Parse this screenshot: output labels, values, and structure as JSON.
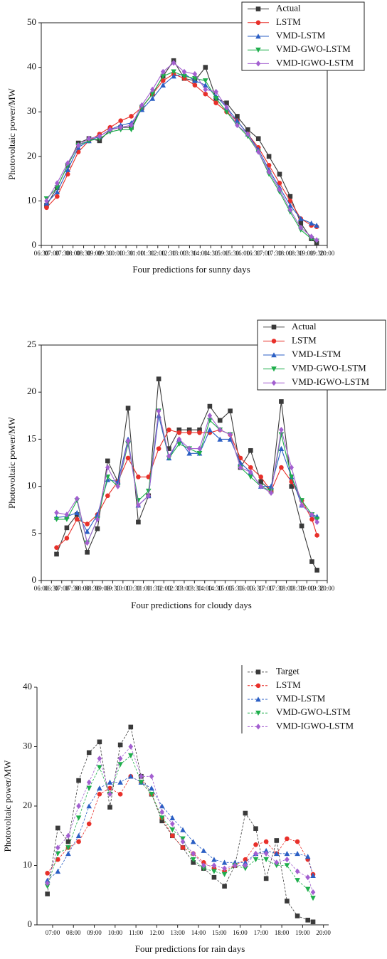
{
  "chart_data": [
    {
      "type": "line",
      "xlabel": "Four predictions for sunny days",
      "ylabel": "Photovoltaic power/MW",
      "xlim": [
        6.5,
        20
      ],
      "ylim": [
        0,
        50
      ],
      "xticks": [
        {
          "value": 6.5,
          "label": "06:30"
        },
        {
          "value": 7,
          "label": "07:00"
        },
        {
          "value": 7.5,
          "label": "07:30"
        },
        {
          "value": 8,
          "label": "08:00"
        },
        {
          "value": 8.5,
          "label": "08:30"
        },
        {
          "value": 9,
          "label": "09:00"
        },
        {
          "value": 9.5,
          "label": "09:30"
        },
        {
          "value": 10,
          "label": "10:00"
        },
        {
          "value": 10.5,
          "label": "10:30"
        },
        {
          "value": 11,
          "label": "11:00"
        },
        {
          "value": 11.5,
          "label": "11:30"
        },
        {
          "value": 12,
          "label": "12:00"
        },
        {
          "value": 12.5,
          "label": "12:30"
        },
        {
          "value": 13,
          "label": "13:00"
        },
        {
          "value": 13.5,
          "label": "13:30"
        },
        {
          "value": 14,
          "label": "14:00"
        },
        {
          "value": 14.5,
          "label": "14:30"
        },
        {
          "value": 15,
          "label": "15:00"
        },
        {
          "value": 15.5,
          "label": "15:30"
        },
        {
          "value": 16,
          "label": "16:00"
        },
        {
          "value": 16.5,
          "label": "16:30"
        },
        {
          "value": 17,
          "label": "17:00"
        },
        {
          "value": 17.5,
          "label": "17:30"
        },
        {
          "value": 18,
          "label": "18:00"
        },
        {
          "value": 18.5,
          "label": "18:30"
        },
        {
          "value": 19,
          "label": "19:00"
        },
        {
          "value": 19.5,
          "label": "19:30"
        },
        {
          "value": 20,
          "label": "20:00"
        }
      ],
      "yticks": [
        0,
        10,
        20,
        30,
        40,
        50
      ],
      "linestyle": "solid",
      "legend": "upper right",
      "x": [
        6.75,
        7.25,
        7.75,
        8.25,
        8.75,
        9.25,
        9.75,
        10.25,
        10.75,
        11.25,
        11.75,
        12.25,
        12.75,
        13.25,
        13.75,
        14.25,
        14.75,
        15.25,
        15.75,
        16.25,
        16.75,
        17.25,
        17.75,
        18.25,
        18.75,
        19.25,
        19.5
      ],
      "series": [
        {
          "name": "Actual",
          "color": "#3a3a3a",
          "values": [
            9,
            13,
            18,
            23,
            24,
            23.5,
            26,
            26.5,
            26.5,
            31,
            34,
            38,
            41.5,
            37.5,
            37,
            40,
            33,
            32,
            29,
            26,
            24,
            20,
            16,
            11,
            5,
            1.5,
            0.5
          ]
        },
        {
          "name": "LSTM",
          "color": "#e8302a",
          "values": [
            8.5,
            11,
            16,
            21,
            23.5,
            25,
            26.5,
            28,
            29,
            31,
            34,
            37,
            38.5,
            37.5,
            36,
            34,
            32,
            30,
            28,
            25,
            22,
            18,
            14,
            10,
            6,
            4.5,
            4.2
          ]
        },
        {
          "name": "VMD-LSTM",
          "color": "#2b5fc4",
          "values": [
            9.5,
            12,
            17,
            22,
            23.5,
            24.5,
            26,
            27,
            27.5,
            30.5,
            33,
            36,
            38,
            38.5,
            37,
            36,
            33.5,
            31,
            28,
            25,
            21.5,
            17,
            13,
            9,
            6,
            5,
            4.5
          ]
        },
        {
          "name": "VMD-GWO-LSTM",
          "color": "#1fae4c",
          "values": [
            10.5,
            13,
            18,
            22.5,
            23.5,
            24,
            25.5,
            26,
            26,
            31,
            34,
            38,
            39,
            38,
            37.5,
            37,
            33,
            30,
            27,
            24.5,
            21,
            16,
            12,
            7.5,
            3.5,
            1.5,
            1
          ]
        },
        {
          "name": "VMD-IGWO-LSTM",
          "color": "#a35fd0",
          "values": [
            10,
            14,
            18.5,
            22.5,
            24,
            24.5,
            26,
            26.5,
            27,
            31.5,
            35,
            39,
            41,
            39,
            38.5,
            35,
            34.5,
            31,
            27,
            25,
            21,
            16.5,
            12.5,
            8,
            4,
            2,
            1.2
          ]
        }
      ]
    },
    {
      "type": "line",
      "xlabel": "Four predictions for cloudy days",
      "ylabel": "Photovoltaic power/MW",
      "xlim": [
        6,
        20
      ],
      "ylim": [
        0,
        25
      ],
      "xticks": [
        {
          "value": 6,
          "label": "06:00"
        },
        {
          "value": 6.5,
          "label": "06:30"
        },
        {
          "value": 7,
          "label": "07:00"
        },
        {
          "value": 7.5,
          "label": "07:30"
        },
        {
          "value": 8,
          "label": "08:00"
        },
        {
          "value": 8.5,
          "label": "08:30"
        },
        {
          "value": 9,
          "label": "09:00"
        },
        {
          "value": 9.5,
          "label": "09:30"
        },
        {
          "value": 10,
          "label": "10:00"
        },
        {
          "value": 10.5,
          "label": "10:30"
        },
        {
          "value": 11,
          "label": "11:00"
        },
        {
          "value": 11.5,
          "label": "11:30"
        },
        {
          "value": 12,
          "label": "12:00"
        },
        {
          "value": 12.5,
          "label": "12:30"
        },
        {
          "value": 13,
          "label": "13:00"
        },
        {
          "value": 13.5,
          "label": "13:30"
        },
        {
          "value": 14,
          "label": "14:00"
        },
        {
          "value": 14.5,
          "label": "14:30"
        },
        {
          "value": 15,
          "label": "15:00"
        },
        {
          "value": 15.5,
          "label": "15:30"
        },
        {
          "value": 16,
          "label": "16:00"
        },
        {
          "value": 16.5,
          "label": "16:30"
        },
        {
          "value": 17,
          "label": "17:00"
        },
        {
          "value": 17.5,
          "label": "17:30"
        },
        {
          "value": 18,
          "label": "18:00"
        },
        {
          "value": 18.5,
          "label": "18:30"
        },
        {
          "value": 19,
          "label": "19:00"
        },
        {
          "value": 19.5,
          "label": "19:30"
        },
        {
          "value": 20,
          "label": "20:00"
        }
      ],
      "yticks": [
        0,
        5,
        10,
        15,
        20,
        25
      ],
      "linestyle": "solid",
      "legend": "upper right",
      "x": [
        6.75,
        7.25,
        7.75,
        8.25,
        8.75,
        9.25,
        9.75,
        10.25,
        10.75,
        11.25,
        11.75,
        12.25,
        12.75,
        13.25,
        13.75,
        14.25,
        14.75,
        15.25,
        15.75,
        16.25,
        16.75,
        17.25,
        17.75,
        18.25,
        18.75,
        19.25,
        19.5
      ],
      "series": [
        {
          "name": "Actual",
          "color": "#3a3a3a",
          "values": [
            2.8,
            5.6,
            7,
            3,
            5.5,
            12.7,
            10.5,
            18.3,
            6.2,
            9,
            21.4,
            14,
            16,
            16,
            16,
            18.5,
            17,
            18,
            12,
            13.8,
            10.5,
            9.5,
            19,
            10,
            5.8,
            2,
            1.1
          ]
        },
        {
          "name": "LSTM",
          "color": "#e8302a",
          "values": [
            3.5,
            4.5,
            6.5,
            6,
            7,
            9,
            10.5,
            13,
            11,
            11,
            14,
            16,
            15.7,
            15.7,
            15.7,
            15.7,
            16,
            15.5,
            13,
            12,
            11,
            9.5,
            12,
            10.5,
            8.5,
            6.5,
            4.8
          ]
        },
        {
          "name": "VMD-LSTM",
          "color": "#2b5fc4",
          "values": [
            6.7,
            6.8,
            7.2,
            5.2,
            7,
            10.7,
            10.5,
            15,
            8,
            9,
            17.5,
            13,
            15,
            13.5,
            13.5,
            16,
            15,
            15,
            12.5,
            11.5,
            10,
            10,
            14,
            11,
            8,
            7,
            6.8
          ]
        },
        {
          "name": "VMD-GWO-LSTM",
          "color": "#1fae4c",
          "values": [
            6.5,
            6.5,
            8.5,
            4,
            6.5,
            11,
            10,
            14.5,
            8.5,
            9.5,
            18,
            13,
            14.5,
            14,
            13.5,
            17,
            16,
            15.5,
            12,
            11,
            10,
            9.5,
            15.5,
            11,
            8.5,
            7,
            6.5
          ]
        },
        {
          "name": "VMD-IGWO-LSTM",
          "color": "#a35fd0",
          "values": [
            7.2,
            7,
            8.7,
            4,
            6.5,
            12,
            10,
            14.8,
            8,
            9,
            18,
            13.2,
            15,
            14,
            14,
            17.5,
            16,
            15.5,
            12,
            11.5,
            10,
            9.3,
            16,
            12,
            8,
            7,
            6.2
          ]
        }
      ]
    },
    {
      "type": "line",
      "xlabel": "Four predictions for rain days",
      "ylabel": "Photovoltaic power/MW",
      "xlim": [
        6.25,
        20.25
      ],
      "ylim": [
        0,
        40
      ],
      "xticks": [
        {
          "value": 7,
          "label": "07:00"
        },
        {
          "value": 8,
          "label": "08:00"
        },
        {
          "value": 9,
          "label": "09:00"
        },
        {
          "value": 10,
          "label": "10:00"
        },
        {
          "value": 11,
          "label": "11:00"
        },
        {
          "value": 12,
          "label": "12:00"
        },
        {
          "value": 13,
          "label": "13:00"
        },
        {
          "value": 14,
          "label": "14:00"
        },
        {
          "value": 15,
          "label": "15:00"
        },
        {
          "value": 16,
          "label": "16:00"
        },
        {
          "value": 17,
          "label": "17:00"
        },
        {
          "value": 18,
          "label": "18:00"
        },
        {
          "value": 19,
          "label": "19:00"
        },
        {
          "value": 20,
          "label": "20:00"
        }
      ],
      "yticks": [
        0,
        10,
        20,
        30,
        40
      ],
      "linestyle": "dashed",
      "legend": "upper right",
      "x": [
        6.75,
        7.25,
        7.75,
        8.25,
        8.75,
        9.25,
        9.75,
        10.25,
        10.75,
        11.25,
        11.75,
        12.25,
        12.75,
        13.25,
        13.75,
        14.25,
        14.75,
        15.25,
        15.75,
        16.25,
        16.75,
        17.25,
        17.75,
        18.25,
        18.75,
        19.25,
        19.5
      ],
      "series": [
        {
          "name": "Target",
          "color": "#3a3a3a",
          "values": [
            5.2,
            16.3,
            14,
            24.3,
            29,
            30.8,
            19.8,
            30.3,
            33.3,
            25,
            22,
            17.5,
            15,
            13,
            10.5,
            9.5,
            8,
            6.5,
            10,
            18.8,
            16.2,
            7.8,
            14.2,
            4,
            1.5,
            0.8,
            0.5
          ]
        },
        {
          "name": "LSTM",
          "color": "#e8302a",
          "values": [
            8.7,
            11,
            13,
            14,
            17,
            22,
            23,
            22,
            25,
            24,
            22,
            18,
            15,
            13,
            12,
            10.5,
            9.5,
            9,
            10,
            11,
            13.5,
            14,
            12,
            14.5,
            14,
            11,
            8.5
          ]
        },
        {
          "name": "VMD-LSTM",
          "color": "#2b5fc4",
          "values": [
            7.5,
            9,
            12,
            15,
            20,
            23,
            24,
            24,
            25,
            24,
            23,
            20,
            18,
            16,
            14,
            12.5,
            11,
            10.5,
            10.5,
            10.5,
            12,
            12.5,
            12,
            12,
            12,
            11.5,
            8.3
          ]
        },
        {
          "name": "VMD-GWO-LSTM",
          "color": "#1fae4c",
          "values": [
            6.5,
            12,
            13,
            18,
            23,
            26.5,
            22,
            27,
            28.5,
            24,
            22,
            18,
            16,
            14.5,
            11,
            9.5,
            9,
            8.5,
            10,
            9.5,
            11,
            11,
            10,
            10,
            7.5,
            6,
            4.5
          ]
        },
        {
          "name": "VMD-IGWO-LSTM",
          "color": "#a35fd0",
          "values": [
            7,
            13,
            15,
            20,
            24,
            28,
            22,
            28,
            30,
            25,
            25,
            19,
            17,
            14,
            12,
            10,
            10,
            9.5,
            10,
            10,
            12,
            12,
            10.5,
            11,
            9,
            8,
            5.5
          ]
        }
      ]
    }
  ]
}
